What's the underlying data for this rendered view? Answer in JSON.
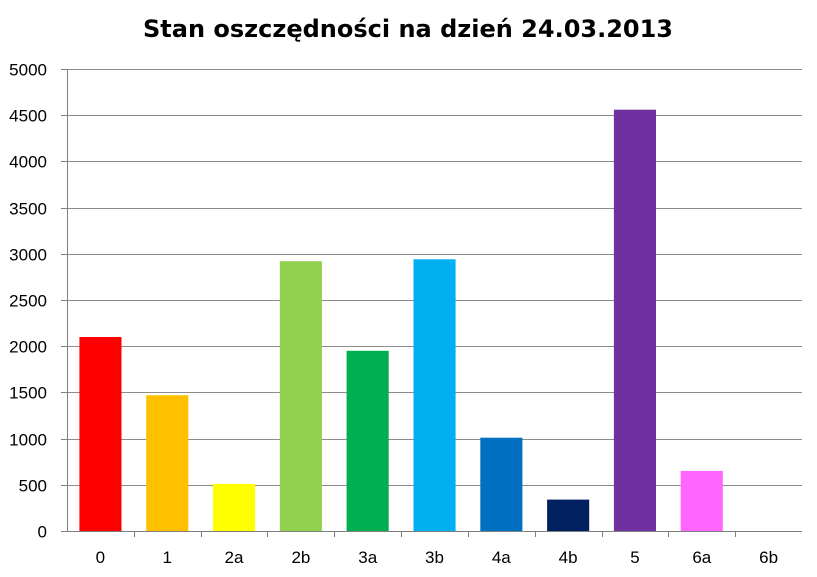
{
  "chart_data": {
    "type": "bar",
    "title": "Stan oszczędności na dzień 24.03.2013",
    "xlabel": "",
    "ylabel": "",
    "categories": [
      "0",
      "1",
      "2a",
      "2b",
      "3a",
      "3b",
      "4a",
      "4b",
      "5",
      "6a",
      "6b"
    ],
    "values": [
      2100,
      1470,
      510,
      2920,
      1950,
      2940,
      1010,
      340,
      4560,
      650,
      0
    ],
    "colors": [
      "#ff0000",
      "#ffc000",
      "#ffff00",
      "#92d050",
      "#00b050",
      "#00b0f0",
      "#0070c0",
      "#002060",
      "#7030a0",
      "#ff66ff",
      "#ffffff"
    ],
    "ylim": [
      0,
      5000
    ],
    "yticks": [
      0,
      500,
      1000,
      1500,
      2000,
      2500,
      3000,
      3500,
      4000,
      4500,
      5000
    ],
    "grid": true,
    "legend": "none"
  }
}
